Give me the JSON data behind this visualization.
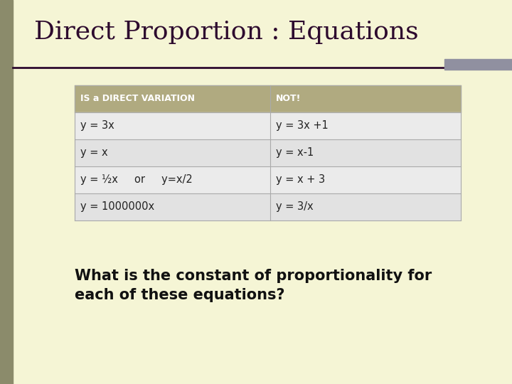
{
  "title": "Direct Proportion : Equations",
  "title_color": "#2d0a2e",
  "title_fontsize": 26,
  "bg_color": "#f5f5d5",
  "left_bar_color": "#8b8b6b",
  "horizontal_line_color": "#2d0a2e",
  "accent_bar_color": "#9090a0",
  "table_header_bg": "#b0aa80",
  "table_header_text_color": "#ffffff",
  "table_row_bg_odd": "#e2e2e2",
  "table_row_bg_even": "#ebebeb",
  "table_text_color": "#222222",
  "col1_header": "IS a DIRECT VARIATION",
  "col2_header": "NOT!",
  "rows": [
    [
      "y = 3x",
      "y = 3x +1"
    ],
    [
      "y = x",
      "y = x-1"
    ],
    [
      "y = ½x     or     y=x/2",
      "y = x + 3"
    ],
    [
      "y = 1000000x",
      "y = 3/x"
    ]
  ],
  "footer_line1": "What is the constant of proportionality for",
  "footer_line2": "each of these equations?",
  "footer_fontsize": 15,
  "footer_color": "#111111"
}
